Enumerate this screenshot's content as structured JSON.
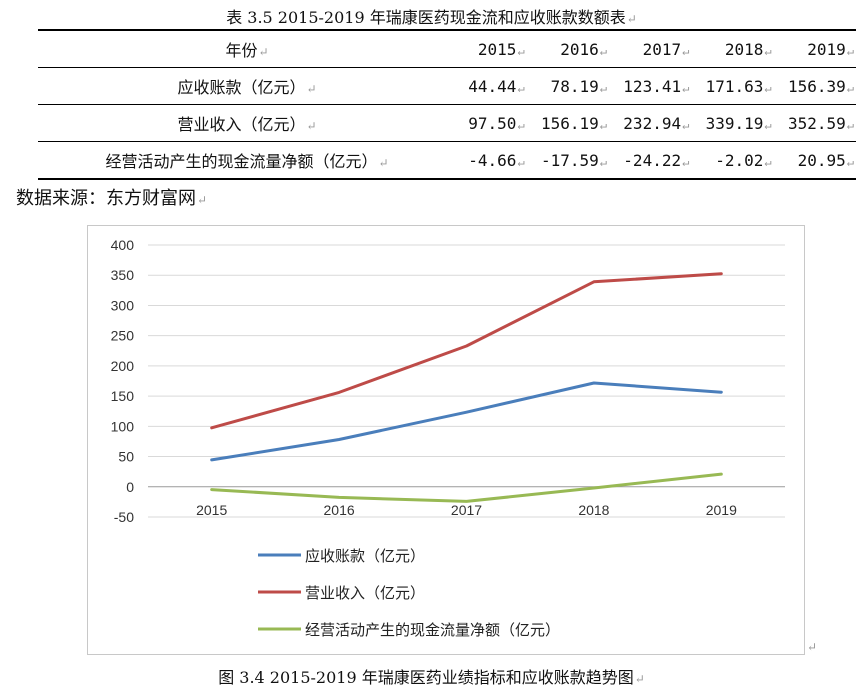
{
  "table_caption": "表 3.5 2015-2019 年瑞康医药现金流和应收账款数额表",
  "table": {
    "header": {
      "label": "年份",
      "years": [
        "2015",
        "2016",
        "2017",
        "2018",
        "2019"
      ]
    },
    "rows": [
      {
        "label": "应收账款（亿元）",
        "values": [
          "44.44",
          "78.19",
          "123.41",
          "171.63",
          "156.39"
        ]
      },
      {
        "label": "营业收入（亿元）",
        "values": [
          "97.50",
          "156.19",
          "232.94",
          "339.19",
          "352.59"
        ]
      },
      {
        "label": "经营活动产生的现金流量净额（亿元）",
        "values": [
          "-4.66",
          "-17.59",
          "-24.22",
          "-2.02",
          "20.95"
        ]
      }
    ]
  },
  "source_note": "数据来源：东方财富网",
  "figure_caption": "图 3.4 2015-2019 年瑞康医药业绩指标和应收账款趋势图",
  "return_mark": "↵",
  "chart_data": {
    "type": "line",
    "categories": [
      "2015",
      "2016",
      "2017",
      "2018",
      "2019"
    ],
    "ylim": [
      -50,
      400
    ],
    "yticks": [
      400,
      350,
      300,
      250,
      200,
      150,
      100,
      50,
      0,
      -50
    ],
    "grid": true,
    "legend_position": "bottom-left",
    "series": [
      {
        "name": "应收账款（亿元）",
        "color": "#4a7ebb",
        "values": [
          44.44,
          78.19,
          123.41,
          171.63,
          156.39
        ]
      },
      {
        "name": "营业收入（亿元）",
        "color": "#be4b48",
        "values": [
          97.5,
          156.19,
          232.94,
          339.19,
          352.59
        ]
      },
      {
        "name": "经营活动产生的现金流量净额（亿元）",
        "color": "#98b954",
        "values": [
          -4.66,
          -17.59,
          -24.22,
          -2.02,
          20.95
        ]
      }
    ]
  }
}
